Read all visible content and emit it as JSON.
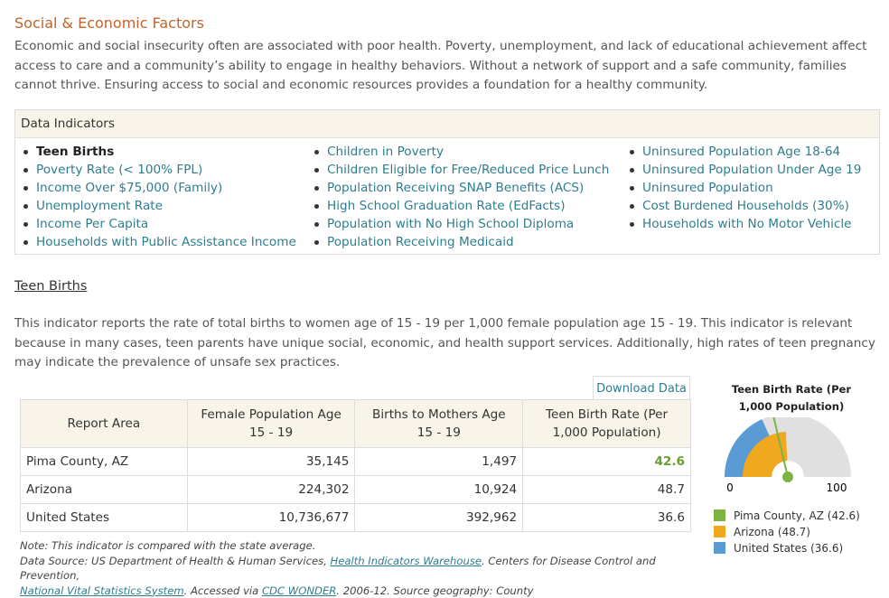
{
  "section": {
    "title": "Social & Economic Factors",
    "intro": "Economic and social insecurity often are associated with poor health. Poverty, unemployment, and lack of educational achievement affect access to care and a community’s ability to engage in healthy behaviors. Without a network of support and a safe community, families cannot thrive. Ensuring access to social and economic resources provides a foundation for a healthy community."
  },
  "indicators": {
    "header": "Data Indicators",
    "col1": [
      "Teen Births",
      "Poverty Rate (< 100% FPL)",
      "Income Over $75,000 (Family)",
      "Unemployment Rate",
      "Income Per Capita",
      "Households with Public Assistance Income"
    ],
    "col2": [
      "Children in Poverty",
      "Children Eligible for Free/Reduced Price Lunch",
      "Population Receiving SNAP Benefits (ACS)",
      "High School Graduation Rate (EdFacts)",
      "Population with No High School Diploma",
      "Population Receiving Medicaid"
    ],
    "col3": [
      "Uninsured Population Age 18-64",
      "Uninsured Population Under Age 19",
      "Uninsured Population",
      "Cost Burdened Households (30%)",
      "Households with No Motor Vehicle"
    ]
  },
  "teen": {
    "title": "Teen Births",
    "description": "This indicator reports the rate of total births to women age of 15 - 19 per 1,000 female population age 15 - 19. This indicator is relevant because in many cases, teen parents have unique social, economic, and health support services. Additionally, high rates of teen pregnancy may indicate the prevalence of unsafe sex practices.",
    "download": "Download Data"
  },
  "table": {
    "headers": [
      "Report Area",
      "Female Population Age 15 - 19",
      "Births to Mothers Age 15 - 19",
      "Teen Birth Rate (Per 1,000 Population)"
    ],
    "rows": [
      [
        "Pima County, AZ",
        "35,145",
        "1,497",
        "42.6"
      ],
      [
        "Arizona",
        "224,302",
        "10,924",
        "48.7"
      ],
      [
        "United States",
        "10,736,677",
        "392,962",
        "36.6"
      ]
    ]
  },
  "note": {
    "line1": "Note: This indicator is compared with the state average.",
    "line2_prefix": "Data Source: US Department of Health & Human Services, ",
    "line2_link": "Health Indicators Warehouse",
    "line2_suffix": ". Centers for Disease Control and Prevention,",
    "line3_link1": "National Vital Statistics System",
    "line3_mid": ". Accessed via ",
    "line3_link2": "CDC WONDER",
    "line3_suffix": ". 2006-12. Source geography: County"
  },
  "chart_data": {
    "type": "gauge",
    "title": "Teen Birth Rate (Per 1,000 Population)",
    "range": [
      0,
      100
    ],
    "min_label": "0",
    "max_label": "100",
    "series": [
      {
        "name": "Pima County, AZ (42.6)",
        "value": 42.6,
        "color": "#7cb342"
      },
      {
        "name": "Arizona (48.7)",
        "value": 48.7,
        "color": "#f0a81e"
      },
      {
        "name": "United States (36.6)",
        "value": 36.6,
        "color": "#5b9bd5"
      }
    ],
    "track_color": "#e0e0e0"
  },
  "colors": {
    "accent": "#c0642b",
    "link": "#2e7d8f",
    "highlight": "#6a9e2f"
  }
}
